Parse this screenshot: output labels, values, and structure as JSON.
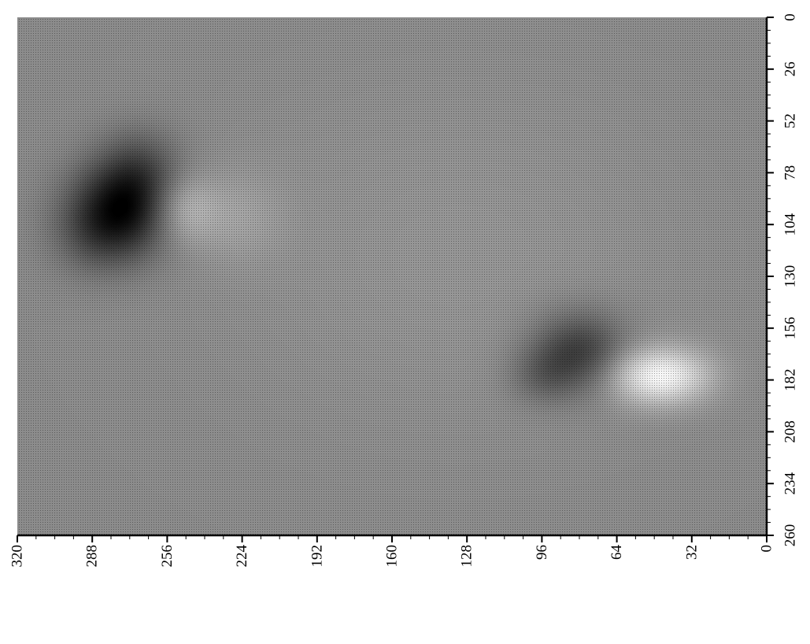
{
  "chart_data": {
    "type": "heatmap",
    "title": "",
    "xlabel": "",
    "ylabel": "",
    "colormap": "grayscale",
    "grid": false,
    "legend": "none",
    "xlim": [
      0,
      320
    ],
    "ylim": [
      0,
      260
    ],
    "x_ticks": [
      "0",
      "32",
      "64",
      "96",
      "128",
      "160",
      "192",
      "224",
      "256",
      "288",
      "320"
    ],
    "y_ticks": [
      "0",
      "26",
      "52",
      "78",
      "104",
      "130",
      "156",
      "182",
      "208",
      "234",
      "260"
    ],
    "background_level": 0.55,
    "features": [
      {
        "x": 274,
        "y": 94,
        "sx": 16,
        "sy": 16,
        "amplitude": -0.45
      },
      {
        "x": 284,
        "y": 110,
        "sx": 14,
        "sy": 14,
        "amplitude": -0.18
      },
      {
        "x": 268,
        "y": 74,
        "sx": 12,
        "sy": 14,
        "amplitude": -0.15
      },
      {
        "x": 250,
        "y": 96,
        "sx": 10,
        "sy": 12,
        "amplitude": 0.22
      },
      {
        "x": 226,
        "y": 100,
        "sx": 14,
        "sy": 16,
        "amplitude": 0.08
      },
      {
        "x": 80,
        "y": 168,
        "sx": 14,
        "sy": 14,
        "amplitude": -0.32
      },
      {
        "x": 96,
        "y": 180,
        "sx": 10,
        "sy": 10,
        "amplitude": -0.12
      },
      {
        "x": 46,
        "y": 180,
        "sx": 15,
        "sy": 10,
        "amplitude": 0.42
      },
      {
        "x": 130,
        "y": 120,
        "sx": 70,
        "sy": 60,
        "amplitude": 0.04
      }
    ]
  }
}
